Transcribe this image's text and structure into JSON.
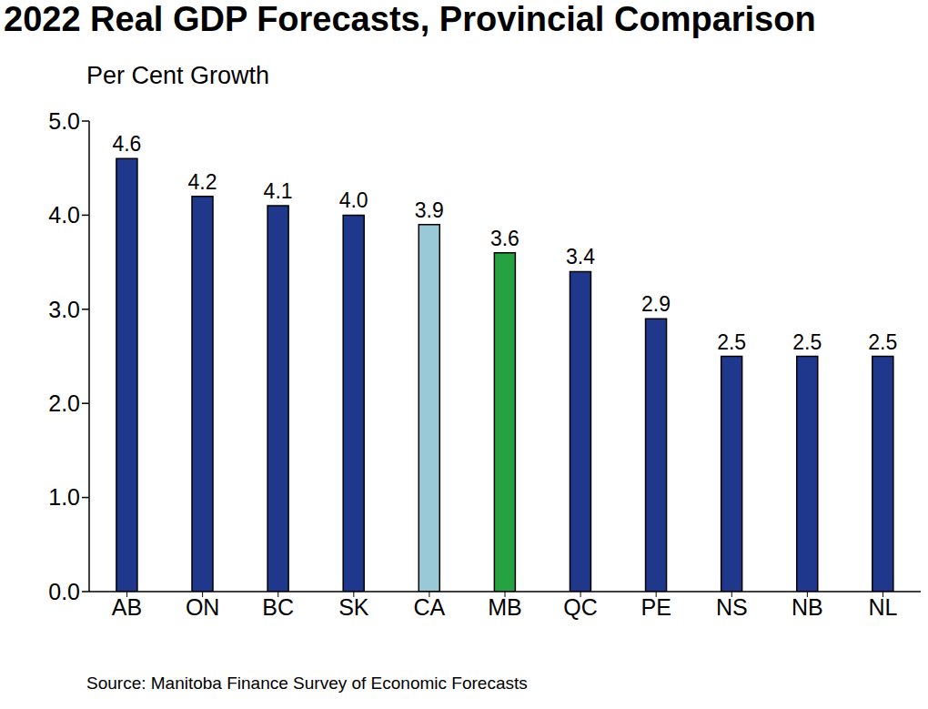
{
  "chart_data": {
    "type": "bar",
    "title": "2022 Real GDP Forecasts, Provincial Comparison",
    "y_label": "Per Cent Growth",
    "source": "Source: Manitoba Finance Survey of Economic Forecasts",
    "categories": [
      "AB",
      "ON",
      "BC",
      "SK",
      "CA",
      "MB",
      "QC",
      "PE",
      "NS",
      "NB",
      "NL"
    ],
    "values": [
      4.6,
      4.2,
      4.1,
      4.0,
      3.9,
      3.6,
      3.4,
      2.9,
      2.5,
      2.5,
      2.5
    ],
    "value_labels": [
      "4.6",
      "4.2",
      "4.1",
      "4.0",
      "3.9",
      "3.6",
      "3.4",
      "2.9",
      "2.5",
      "2.5",
      "2.5"
    ],
    "colors": [
      "#1f388c",
      "#1f388c",
      "#1f388c",
      "#1f388c",
      "#99c9d7",
      "#27a243",
      "#1f388c",
      "#1f388c",
      "#1f388c",
      "#1f388c",
      "#1f388c"
    ],
    "ylim": [
      0,
      5
    ],
    "yticks": [
      {
        "value": 0,
        "label": "0.0"
      },
      {
        "value": 1,
        "label": "1.0"
      },
      {
        "value": 2,
        "label": "2.0"
      },
      {
        "value": 3,
        "label": "3.0"
      },
      {
        "value": 4,
        "label": "4.0"
      },
      {
        "value": 5,
        "label": "5.0"
      }
    ],
    "grid": false,
    "data_labels": true
  }
}
